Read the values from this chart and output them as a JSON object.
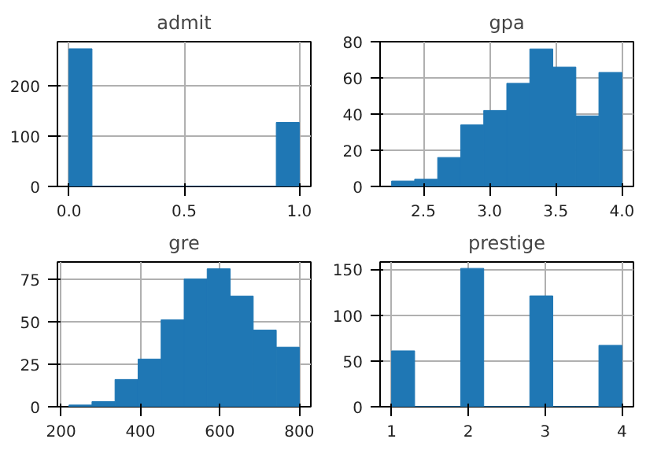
{
  "chart_data": [
    {
      "type": "histogram",
      "title": "admit",
      "bins": [
        0.0,
        0.1,
        0.2,
        0.3,
        0.4,
        0.5,
        0.6,
        0.7,
        0.8,
        0.9,
        1.0
      ],
      "values": [
        273,
        0,
        0,
        0,
        0,
        0,
        0,
        0,
        0,
        127
      ],
      "color": "#1f77b4",
      "xlim": [
        -0.05,
        1.05
      ],
      "ylim": [
        0,
        287
      ],
      "xticks": [
        {
          "value": 0,
          "label": "0.0"
        },
        0.5,
        {
          "value": 1,
          "label": "1.0"
        }
      ],
      "yticks": [
        0,
        100,
        200
      ],
      "grid": true
    },
    {
      "type": "histogram",
      "title": "gpa",
      "bins": [
        2.26,
        2.434,
        2.608,
        2.782,
        2.956,
        3.13,
        3.304,
        3.478,
        3.652,
        3.826,
        4.0
      ],
      "values": [
        3,
        4,
        16,
        34,
        42,
        57,
        76,
        66,
        39,
        63
      ],
      "color": "#1f77b4",
      "xlim": [
        2.173,
        4.087
      ],
      "ylim": [
        0,
        80
      ],
      "xticks": [
        2.5,
        {
          "value": 3,
          "label": "3.0"
        },
        3.5,
        {
          "value": 4,
          "label": "4.0"
        }
      ],
      "yticks": [
        0,
        20,
        40,
        60,
        80
      ],
      "grid": true
    },
    {
      "type": "histogram",
      "title": "gre",
      "bins": [
        220,
        278,
        336,
        394,
        452,
        510,
        568,
        626,
        684,
        742,
        800
      ],
      "values": [
        1,
        3,
        16,
        28,
        51,
        75,
        81,
        65,
        45,
        35
      ],
      "color": "#1f77b4",
      "xlim": [
        191,
        829
      ],
      "ylim": [
        0,
        85
      ],
      "xticks": [
        200,
        400,
        600,
        800
      ],
      "yticks": [
        0,
        25,
        50,
        75
      ],
      "grid": true
    },
    {
      "type": "histogram",
      "title": "prestige",
      "bins": [
        1.0,
        1.3,
        1.6,
        1.9,
        2.2,
        2.5,
        2.8,
        3.1,
        3.4,
        3.7,
        4.0
      ],
      "values": [
        61,
        0,
        0,
        151,
        0,
        0,
        121,
        0,
        0,
        67
      ],
      "color": "#1f77b4",
      "xlim": [
        0.85,
        4.15
      ],
      "ylim": [
        0,
        158
      ],
      "xticks": [
        1,
        2,
        3,
        4
      ],
      "yticks": [
        0,
        50,
        100,
        150
      ],
      "grid": true
    }
  ]
}
